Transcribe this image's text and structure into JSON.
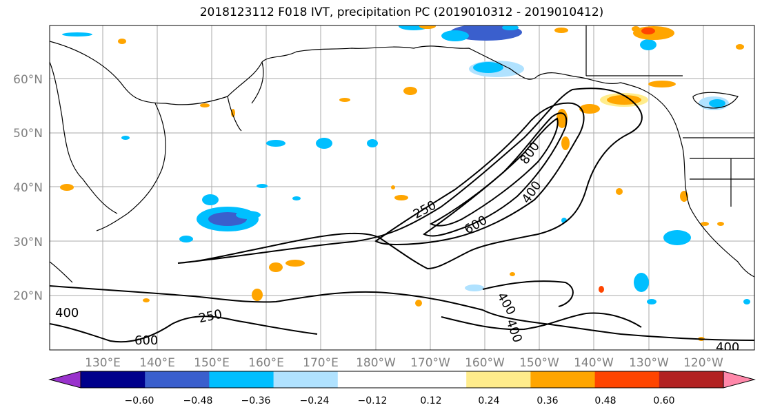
{
  "title": "2018123112 F018 IVT, precipitation PC (2019010312 - 2019010412)",
  "map": {
    "lat_labels": [
      "60°N",
      "50°N",
      "40°N",
      "30°N",
      "20°N"
    ],
    "lon_labels": [
      "130°E",
      "140°E",
      "150°E",
      "160°E",
      "170°E",
      "180°W",
      "170°W",
      "160°W",
      "150°W",
      "140°W",
      "130°W",
      "120°W"
    ],
    "label_color": "#808080"
  },
  "contours": {
    "ivt_levels": [
      "250",
      "400",
      "600",
      "800"
    ],
    "labels": [
      "250",
      "400",
      "600",
      "800",
      "400",
      "400",
      "250",
      "600",
      "400",
      "400"
    ]
  },
  "colorbar": {
    "colors": [
      "#9932cc",
      "#00008b",
      "#3a5fcd",
      "#00bfff",
      "#b0e2ff",
      "#ffffff",
      "#ffffff",
      "#ffec8b",
      "#ffa500",
      "#ff4500",
      "#b22222",
      "#ff88aa"
    ],
    "tick_labels": [
      "−0.60",
      "−0.48",
      "−0.36",
      "−0.24",
      "−0.12",
      "0.12",
      "0.24",
      "0.36",
      "0.48",
      "0.60"
    ]
  }
}
